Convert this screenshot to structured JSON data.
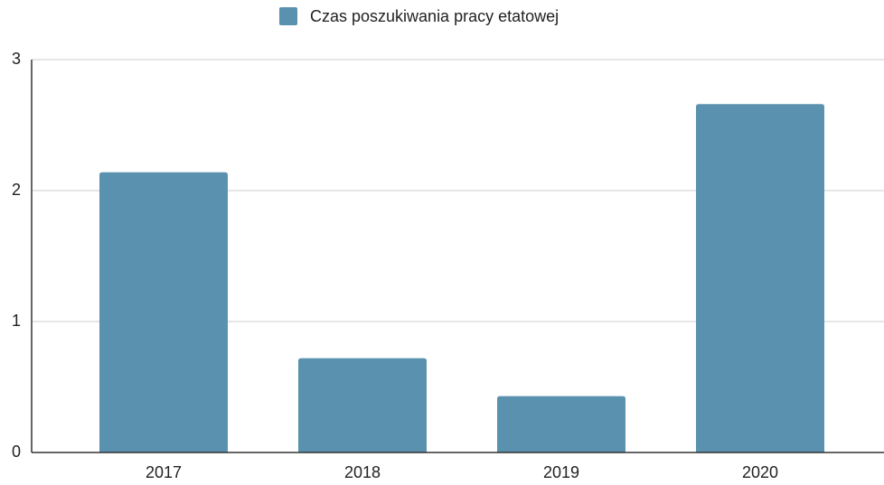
{
  "chart_data": {
    "type": "bar",
    "categories": [
      "2017",
      "2018",
      "2019",
      "2020"
    ],
    "series": [
      {
        "name": "Czas poszukiwania pracy etatowej",
        "color": "#5a91ae",
        "values": [
          2.14,
          0.72,
          0.43,
          2.66
        ]
      }
    ],
    "ylim": [
      0,
      3
    ],
    "yticks": [
      0,
      1,
      2,
      3
    ],
    "grid": true,
    "legend": "top"
  }
}
